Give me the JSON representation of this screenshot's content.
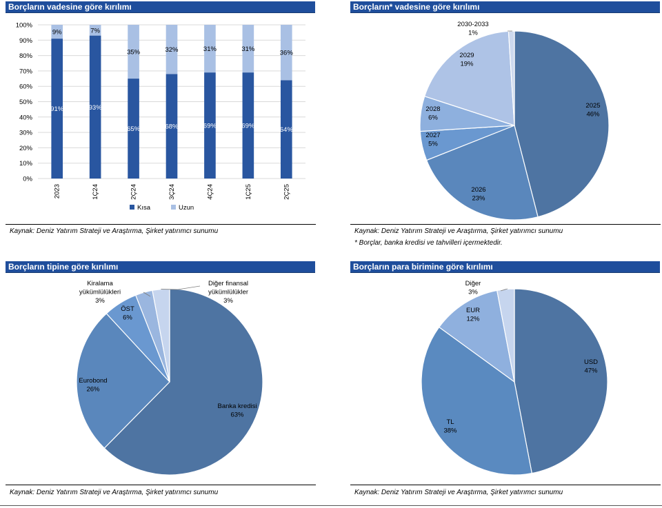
{
  "panels": {
    "maturity_split": {
      "title": "Borçların vadesine göre kırılımı",
      "source": "Kaynak: Deniz Yatırım Strateji ve Araştırma, Şirket yatırımcı sunumu"
    },
    "maturity_years": {
      "title": "Borçların* vadesine göre kırılımı",
      "source": "Kaynak: Deniz Yatırım Strateji ve Araştırma, Şirket yatırımcı sunumu",
      "note": "* Borçlar, banka kredisi ve tahvilleri içermektedir."
    },
    "debt_type": {
      "title": "Borçların tipine göre kırılımı",
      "source": "Kaynak: Deniz Yatırım Strateji ve Araştırma, Şirket yatırımcı sunumu"
    },
    "currency": {
      "title": "Borçların para birimine göre kırılımı",
      "source": "Kaynak: Deniz Yatırım Strateji ve Araştırma, Şirket yatırımcı sunumu"
    }
  },
  "chart_data": [
    {
      "type": "bar",
      "stacked": true,
      "categories": [
        "2023",
        "1Ç24",
        "2Ç24",
        "3Ç24",
        "4Ç24",
        "1Ç25",
        "2Ç25"
      ],
      "series": [
        {
          "name": "Kısa",
          "values": [
            91,
            93,
            65,
            68,
            69,
            69,
            64
          ],
          "labels": [
            "91%",
            "93%",
            "65%",
            "68%",
            "69%",
            "69%",
            "64%"
          ],
          "color": "#2956a0"
        },
        {
          "name": "Uzun",
          "values": [
            9,
            7,
            35,
            32,
            31,
            31,
            36
          ],
          "labels": [
            "9%",
            "7%",
            "35%",
            "32%",
            "31%",
            "31%",
            "36%"
          ],
          "color": "#a9c0e4"
        }
      ],
      "yticks": [
        "0%",
        "10%",
        "20%",
        "30%",
        "40%",
        "50%",
        "60%",
        "70%",
        "80%",
        "90%",
        "100%"
      ],
      "ylim": [
        0,
        100
      ],
      "grid": true,
      "legend": "bottom"
    },
    {
      "type": "pie",
      "slices": [
        {
          "name": "2025",
          "value": 46,
          "label": "46%",
          "color": "#4e74a2"
        },
        {
          "name": "2026",
          "value": 23,
          "label": "23%",
          "color": "#5a87bc"
        },
        {
          "name": "2027",
          "value": 5,
          "label": "5%",
          "color": "#6a98d0"
        },
        {
          "name": "2028",
          "value": 6,
          "label": "6%",
          "color": "#8eb0de"
        },
        {
          "name": "2029",
          "value": 19,
          "label": "19%",
          "color": "#aec3e6"
        },
        {
          "name": "2030-2033",
          "value": 1,
          "label": "1%",
          "color": "#cdd9ee"
        }
      ]
    },
    {
      "type": "pie",
      "slices": [
        {
          "name": "Banka kredisi",
          "value": 63,
          "label": "63%",
          "color": "#4e74a2"
        },
        {
          "name": "Eurobond",
          "value": 26,
          "label": "26%",
          "color": "#5a87bc"
        },
        {
          "name": "ÖST",
          "value": 6,
          "label": "6%",
          "color": "#6a98d0"
        },
        {
          "name": "Kiralama yükümlülükleri",
          "label_lines": [
            "Kiralama",
            "yükümlülükleri"
          ],
          "value": 3,
          "label": "3%",
          "color": "#9ab6df"
        },
        {
          "name": "Diğer finansal yükümlülükler",
          "label_lines": [
            "Diğer finansal",
            "yükümlülükler"
          ],
          "value": 3,
          "label": "3%",
          "color": "#c6d5ee"
        }
      ]
    },
    {
      "type": "pie",
      "slices": [
        {
          "name": "USD",
          "value": 47,
          "label": "47%",
          "color": "#4e74a2"
        },
        {
          "name": "TL",
          "value": 38,
          "label": "38%",
          "color": "#5a8ac0"
        },
        {
          "name": "EUR",
          "value": 12,
          "label": "12%",
          "color": "#8fb0de"
        },
        {
          "name": "Diğer",
          "value": 3,
          "label": "3%",
          "color": "#c6d5ee"
        }
      ]
    }
  ]
}
